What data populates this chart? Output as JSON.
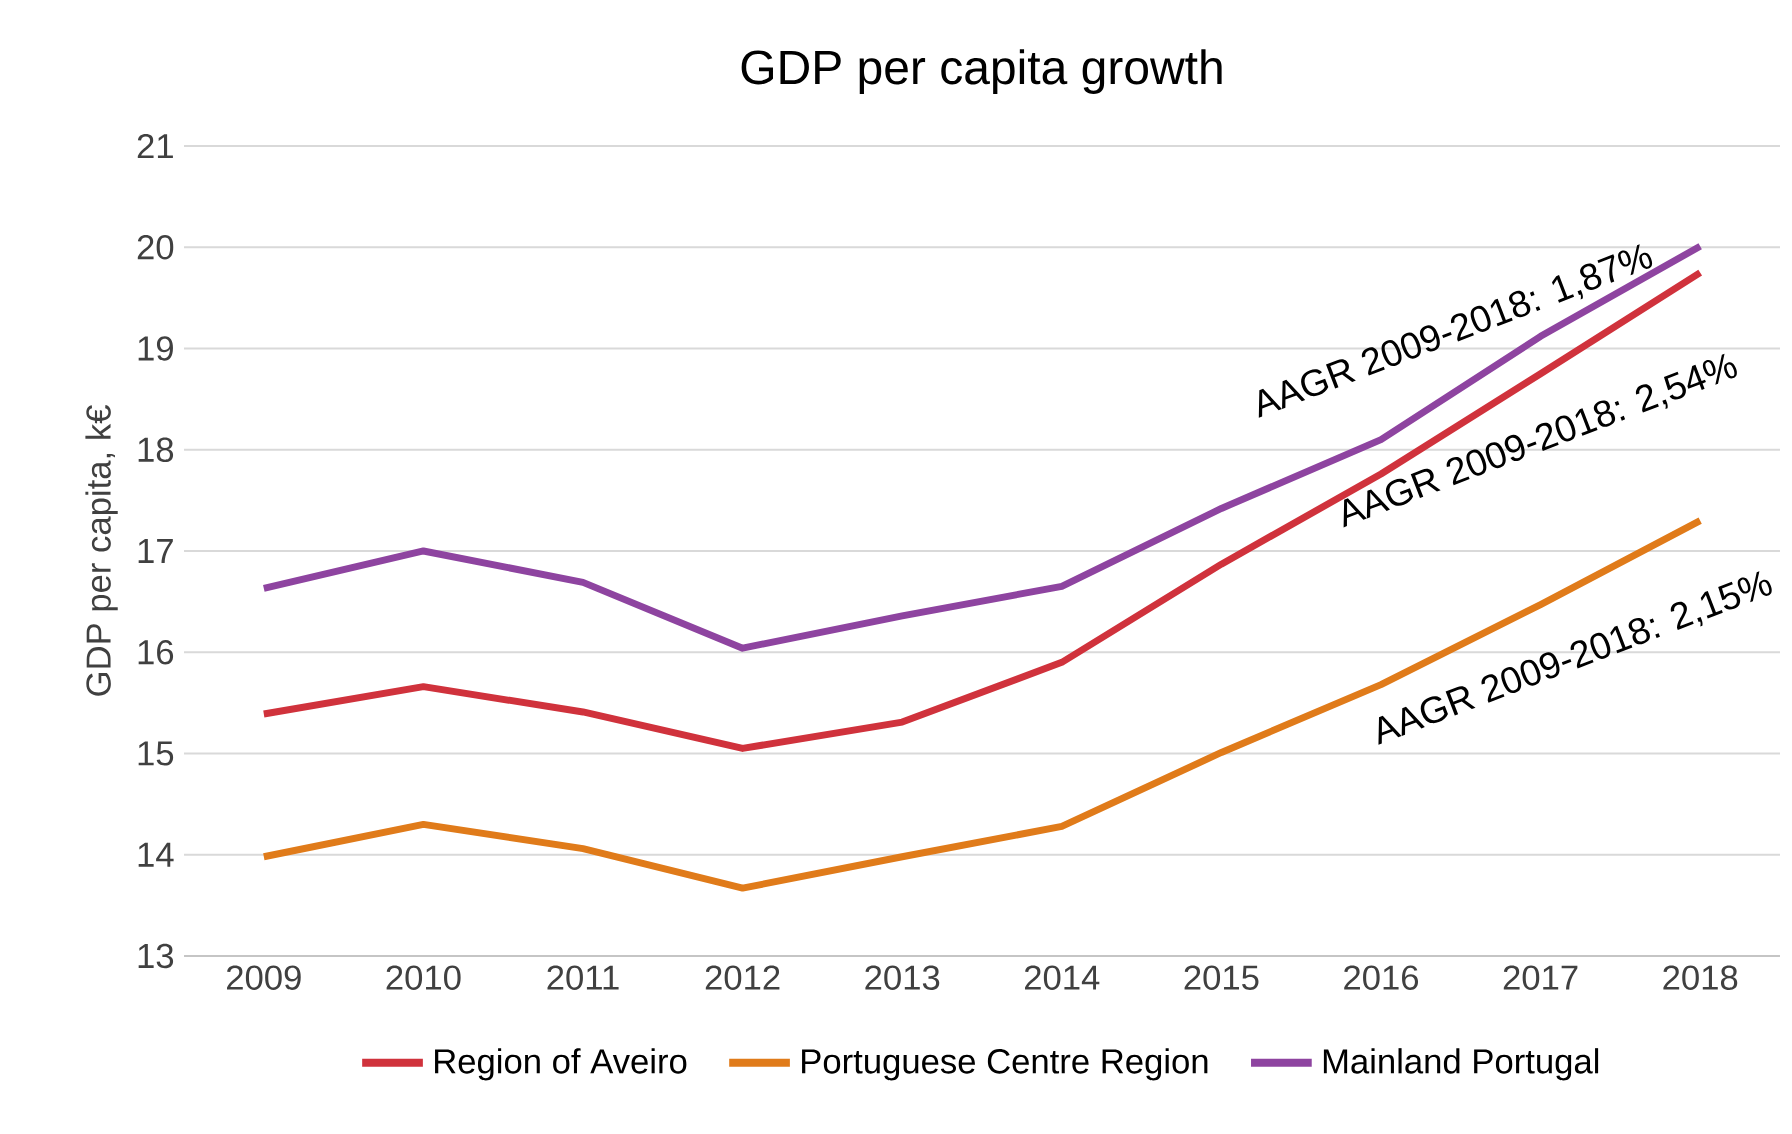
{
  "chart_data": {
    "type": "line",
    "title": "GDP per capita growth",
    "ylabel": "GDP per capita, k€",
    "categories": [
      "2009",
      "2010",
      "2011",
      "2012",
      "2013",
      "2014",
      "2015",
      "2016",
      "2017",
      "2018"
    ],
    "series": [
      {
        "name": "Region of Aveiro",
        "color": "#d0323c",
        "values": [
          15.39,
          15.66,
          15.41,
          15.05,
          15.31,
          15.9,
          16.87,
          17.76,
          18.75,
          19.75
        ]
      },
      {
        "name": "Portuguese Centre Region",
        "color": "#e07b1a",
        "values": [
          13.98,
          14.3,
          14.06,
          13.67,
          13.98,
          14.28,
          15.01,
          15.68,
          16.47,
          17.3
        ]
      },
      {
        "name": "Mainland Portugal",
        "color": "#8e44a0",
        "values": [
          16.63,
          17.0,
          16.69,
          16.04,
          16.36,
          16.65,
          17.42,
          18.1,
          19.12,
          20.01
        ]
      }
    ],
    "annotations": [
      {
        "text": "AAGR 2009-2018: 1,87%",
        "x": "2017",
        "y": 19.12
      },
      {
        "text": "AAGR 2009-2018: 2,54%",
        "x": "2017",
        "y": 18.75
      },
      {
        "text": "AAGR 2009-2018: 2,15%",
        "x": "2017",
        "y": 16.47
      }
    ],
    "ylim": [
      13,
      21
    ],
    "yticks": [
      13,
      14,
      15,
      16,
      17,
      18,
      19,
      20,
      21
    ],
    "grid": "y",
    "legend": "bottom",
    "marker": "none",
    "line_style": "solid"
  }
}
